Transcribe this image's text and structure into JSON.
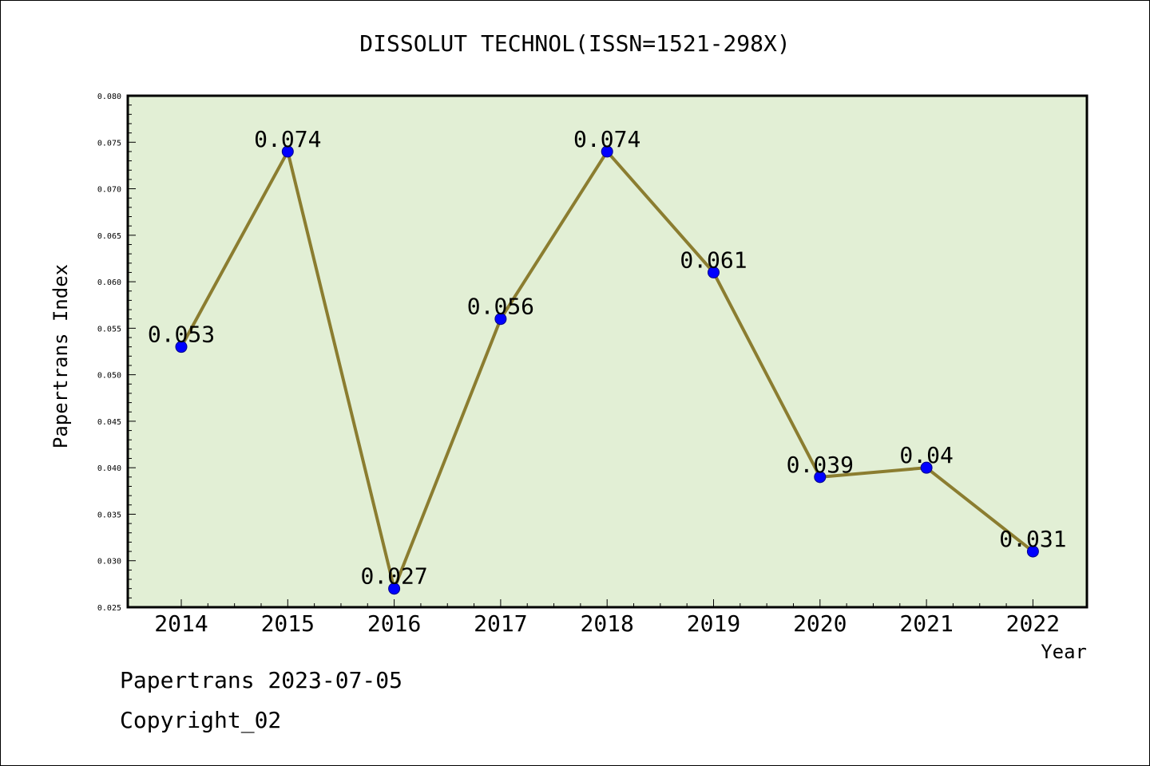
{
  "chart_data": {
    "type": "line",
    "title": "DISSOLUT TECHNOL(ISSN=1521-298X)",
    "xlabel": "Year",
    "ylabel": "Papertrans Index",
    "categories": [
      "2014",
      "2015",
      "2016",
      "2017",
      "2018",
      "2019",
      "2020",
      "2021",
      "2022"
    ],
    "series": [
      {
        "values": [
          0.053,
          0.074,
          0.027,
          0.056,
          0.074,
          0.061,
          0.039,
          0.04,
          0.031
        ],
        "labels": [
          "0.053",
          "0.074",
          "0.027",
          "0.056",
          "0.074",
          "0.061",
          "0.039",
          "0.04",
          "0.031"
        ],
        "line_color": "#8b7d30",
        "marker_color": "#0000ff"
      }
    ],
    "ylim": [
      0.025,
      0.08
    ],
    "yticks": [
      "0.025",
      "0.030",
      "0.035",
      "0.040",
      "0.045",
      "0.050",
      "0.055",
      "0.060",
      "0.065",
      "0.070",
      "0.075",
      "0.080"
    ],
    "plot_background": "#e2efd5",
    "grid": false,
    "legend": "none"
  },
  "footer": {
    "line1": "Papertrans 2023-07-05",
    "line2": "Copyright_02"
  }
}
